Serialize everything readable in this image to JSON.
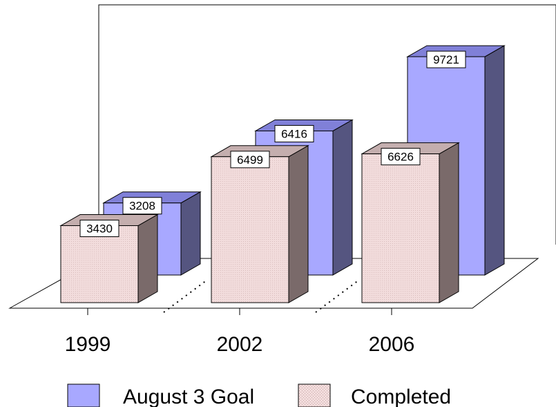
{
  "chart_data": {
    "type": "bar",
    "subtype": "3d-clustered",
    "title": "",
    "xlabel": "",
    "ylabel": "",
    "categories": [
      "1999",
      "2002",
      "2006"
    ],
    "series": [
      {
        "name": "August 3 Goal",
        "values": [
          3208,
          6416,
          9721
        ],
        "color": "#A8A8FF",
        "side_color": "#555580",
        "top_color": "#8080D8"
      },
      {
        "name": "Completed",
        "values": [
          3430,
          6499,
          6626
        ],
        "color": "#F2DCDC",
        "side_color": "#7A6A6A",
        "top_color": "#C4AEAE"
      }
    ],
    "data_labels": true,
    "legend_position": "bottom",
    "ylim": [
      0,
      10000
    ],
    "grid": false
  }
}
